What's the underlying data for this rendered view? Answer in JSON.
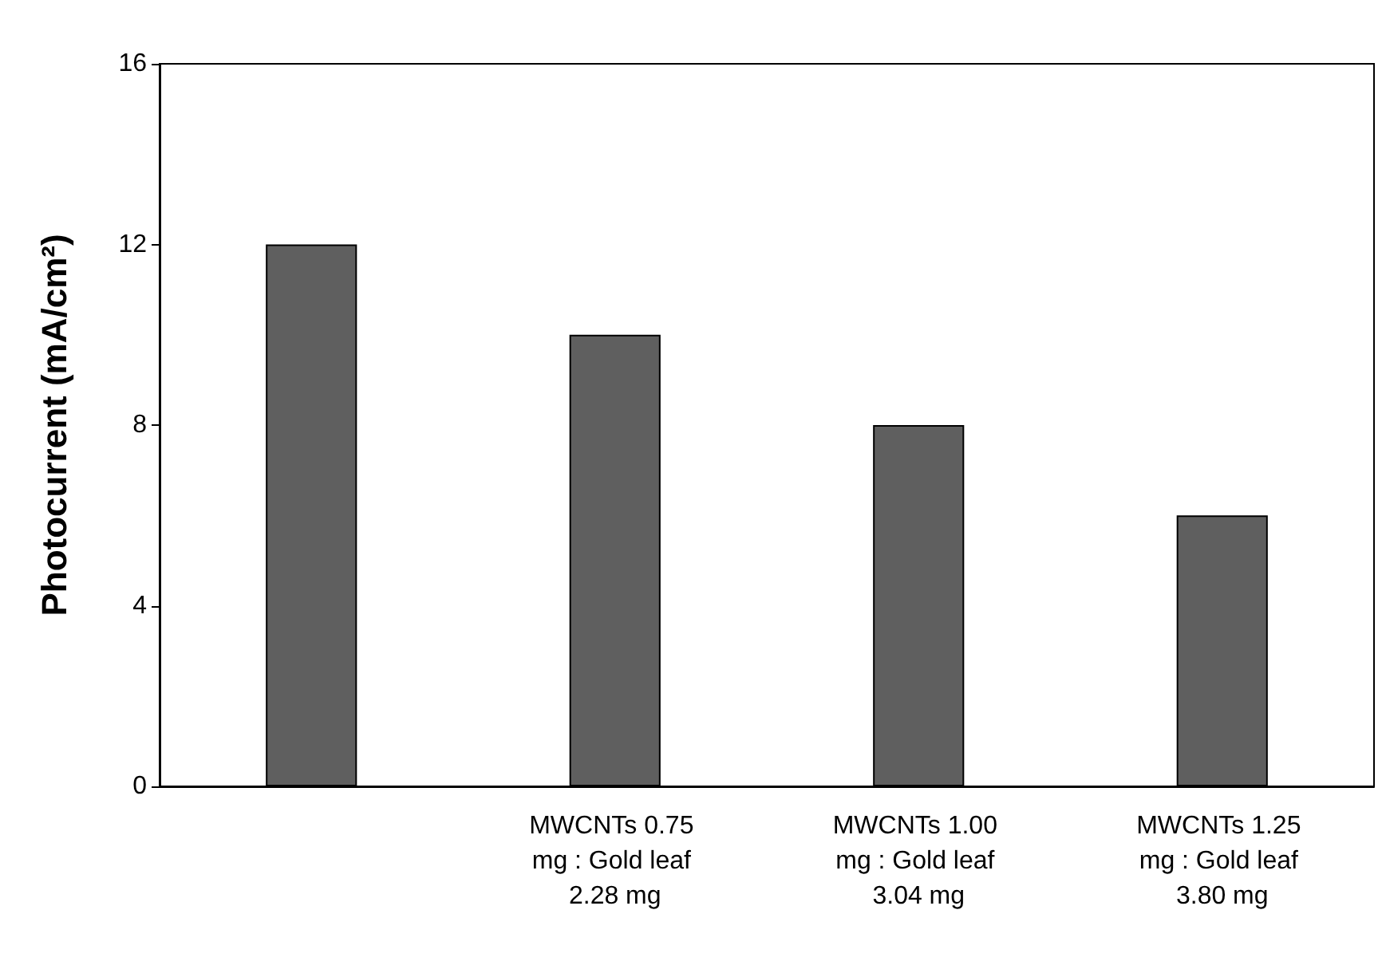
{
  "chart_data": {
    "type": "bar",
    "ylabel": "Photocurrent (mA/cm²)",
    "categories": [
      null,
      "MWCNTs 0.75 mg : Gold leaf 2.28 mg",
      "MWCNTs 1.00 mg : Gold leaf 3.04 mg",
      "MWCNTs 1.25 mg : Gold leaf 3.80 mg"
    ],
    "values": [
      12,
      10,
      8,
      6
    ],
    "color": "#5f5f5f",
    "ylim": [
      0,
      16
    ],
    "yticks": [
      0,
      4,
      8,
      12,
      16
    ],
    "grid": false
  }
}
